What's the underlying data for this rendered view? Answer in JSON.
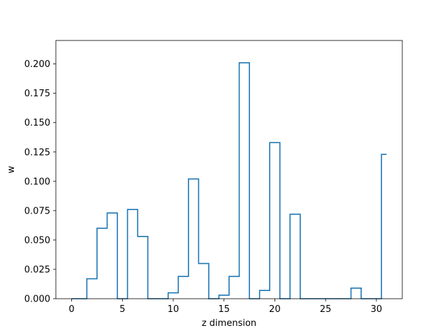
{
  "chart_data": {
    "type": "line",
    "style": "step",
    "title": "",
    "xlabel": "z dimension",
    "ylabel": "w",
    "xlim": [
      -1.55,
      32.55
    ],
    "ylim": [
      0,
      0.22
    ],
    "x_ticks": [
      0,
      5,
      10,
      15,
      20,
      25,
      30
    ],
    "y_ticks": [
      0.0,
      0.025,
      0.05,
      0.075,
      0.1,
      0.125,
      0.15,
      0.175,
      0.2
    ],
    "y_tick_format": "3",
    "grid": false,
    "color": "#1f77b4",
    "x": [
      0,
      1,
      2,
      3,
      4,
      5,
      6,
      7,
      8,
      9,
      10,
      11,
      12,
      13,
      14,
      15,
      16,
      17,
      18,
      19,
      20,
      21,
      22,
      23,
      24,
      25,
      26,
      27,
      28,
      29,
      30,
      31
    ],
    "values": [
      0,
      0,
      0.017,
      0.06,
      0.073,
      0,
      0.076,
      0.053,
      0,
      0,
      0.005,
      0.019,
      0.102,
      0.03,
      0,
      0.003,
      0.019,
      0.201,
      0,
      0.007,
      0.133,
      0,
      0.072,
      0,
      0,
      0,
      0,
      0,
      0.009,
      0,
      0,
      0.123
    ]
  }
}
